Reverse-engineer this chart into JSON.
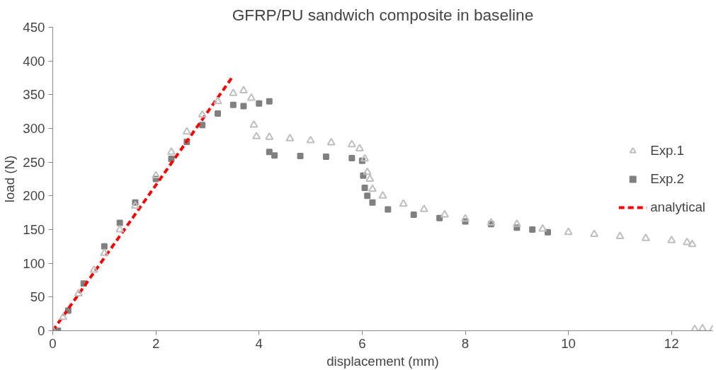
{
  "chart_data": {
    "type": "scatter",
    "title": "GFRP/PU sandwich composite in baseline",
    "xlabel": "displacement (mm)",
    "ylabel": "load (N)",
    "xlim": [
      0,
      12.8
    ],
    "ylim": [
      0,
      450
    ],
    "xticks": [
      0,
      2,
      4,
      6,
      8,
      10,
      12
    ],
    "yticks": [
      0,
      50,
      100,
      150,
      200,
      250,
      300,
      350,
      400,
      450
    ],
    "grid": false,
    "legend": "right",
    "series": [
      {
        "name": "Exp.1",
        "marker": "triangle",
        "color": "#bfbfbf",
        "x": [
          0,
          0.2,
          0.5,
          0.8,
          1,
          1.3,
          1.6,
          2,
          2.3,
          2.6,
          2.9,
          3.2,
          3.5,
          3.7,
          3.85,
          3.9,
          3.95,
          4.2,
          4.6,
          5,
          5.4,
          5.8,
          5.95,
          6.05,
          6.1,
          6.15,
          6.2,
          6.4,
          6.8,
          7.2,
          7.6,
          8,
          8.5,
          9,
          9.5,
          10,
          10.5,
          11,
          11.5,
          12,
          12.3,
          12.4,
          12.45,
          12.6,
          12.8
        ],
        "values": [
          0,
          20,
          55,
          90,
          115,
          150,
          185,
          230,
          265,
          295,
          320,
          340,
          352,
          356,
          345,
          305,
          288,
          287,
          285,
          282,
          279,
          276,
          270,
          255,
          235,
          225,
          210,
          200,
          188,
          180,
          172,
          166,
          160,
          158,
          151,
          146,
          143,
          140,
          137,
          134,
          131,
          128,
          2,
          3,
          2
        ]
      },
      {
        "name": "Exp.2",
        "marker": "square",
        "color": "#808080",
        "x": [
          0.1,
          0.3,
          0.6,
          1,
          1.3,
          1.6,
          2,
          2.3,
          2.6,
          2.9,
          3.2,
          3.5,
          3.7,
          4,
          4.2,
          4.2,
          4.3,
          4.8,
          5.3,
          5.8,
          6,
          6.02,
          6.05,
          6.1,
          6.2,
          6.5,
          7,
          7.5,
          8,
          8.5,
          9,
          9.3,
          9.6
        ],
        "values": [
          0,
          30,
          70,
          125,
          160,
          190,
          225,
          255,
          280,
          305,
          322,
          335,
          333,
          337,
          340,
          265,
          260,
          259,
          258,
          256,
          252,
          230,
          212,
          200,
          190,
          180,
          172,
          167,
          162,
          158,
          153,
          150,
          146
        ]
      },
      {
        "name": "analytical",
        "type": "line",
        "line_style": "dashed",
        "color": "#ff0000",
        "x": [
          0,
          3.5
        ],
        "values": [
          0,
          378
        ]
      }
    ]
  }
}
